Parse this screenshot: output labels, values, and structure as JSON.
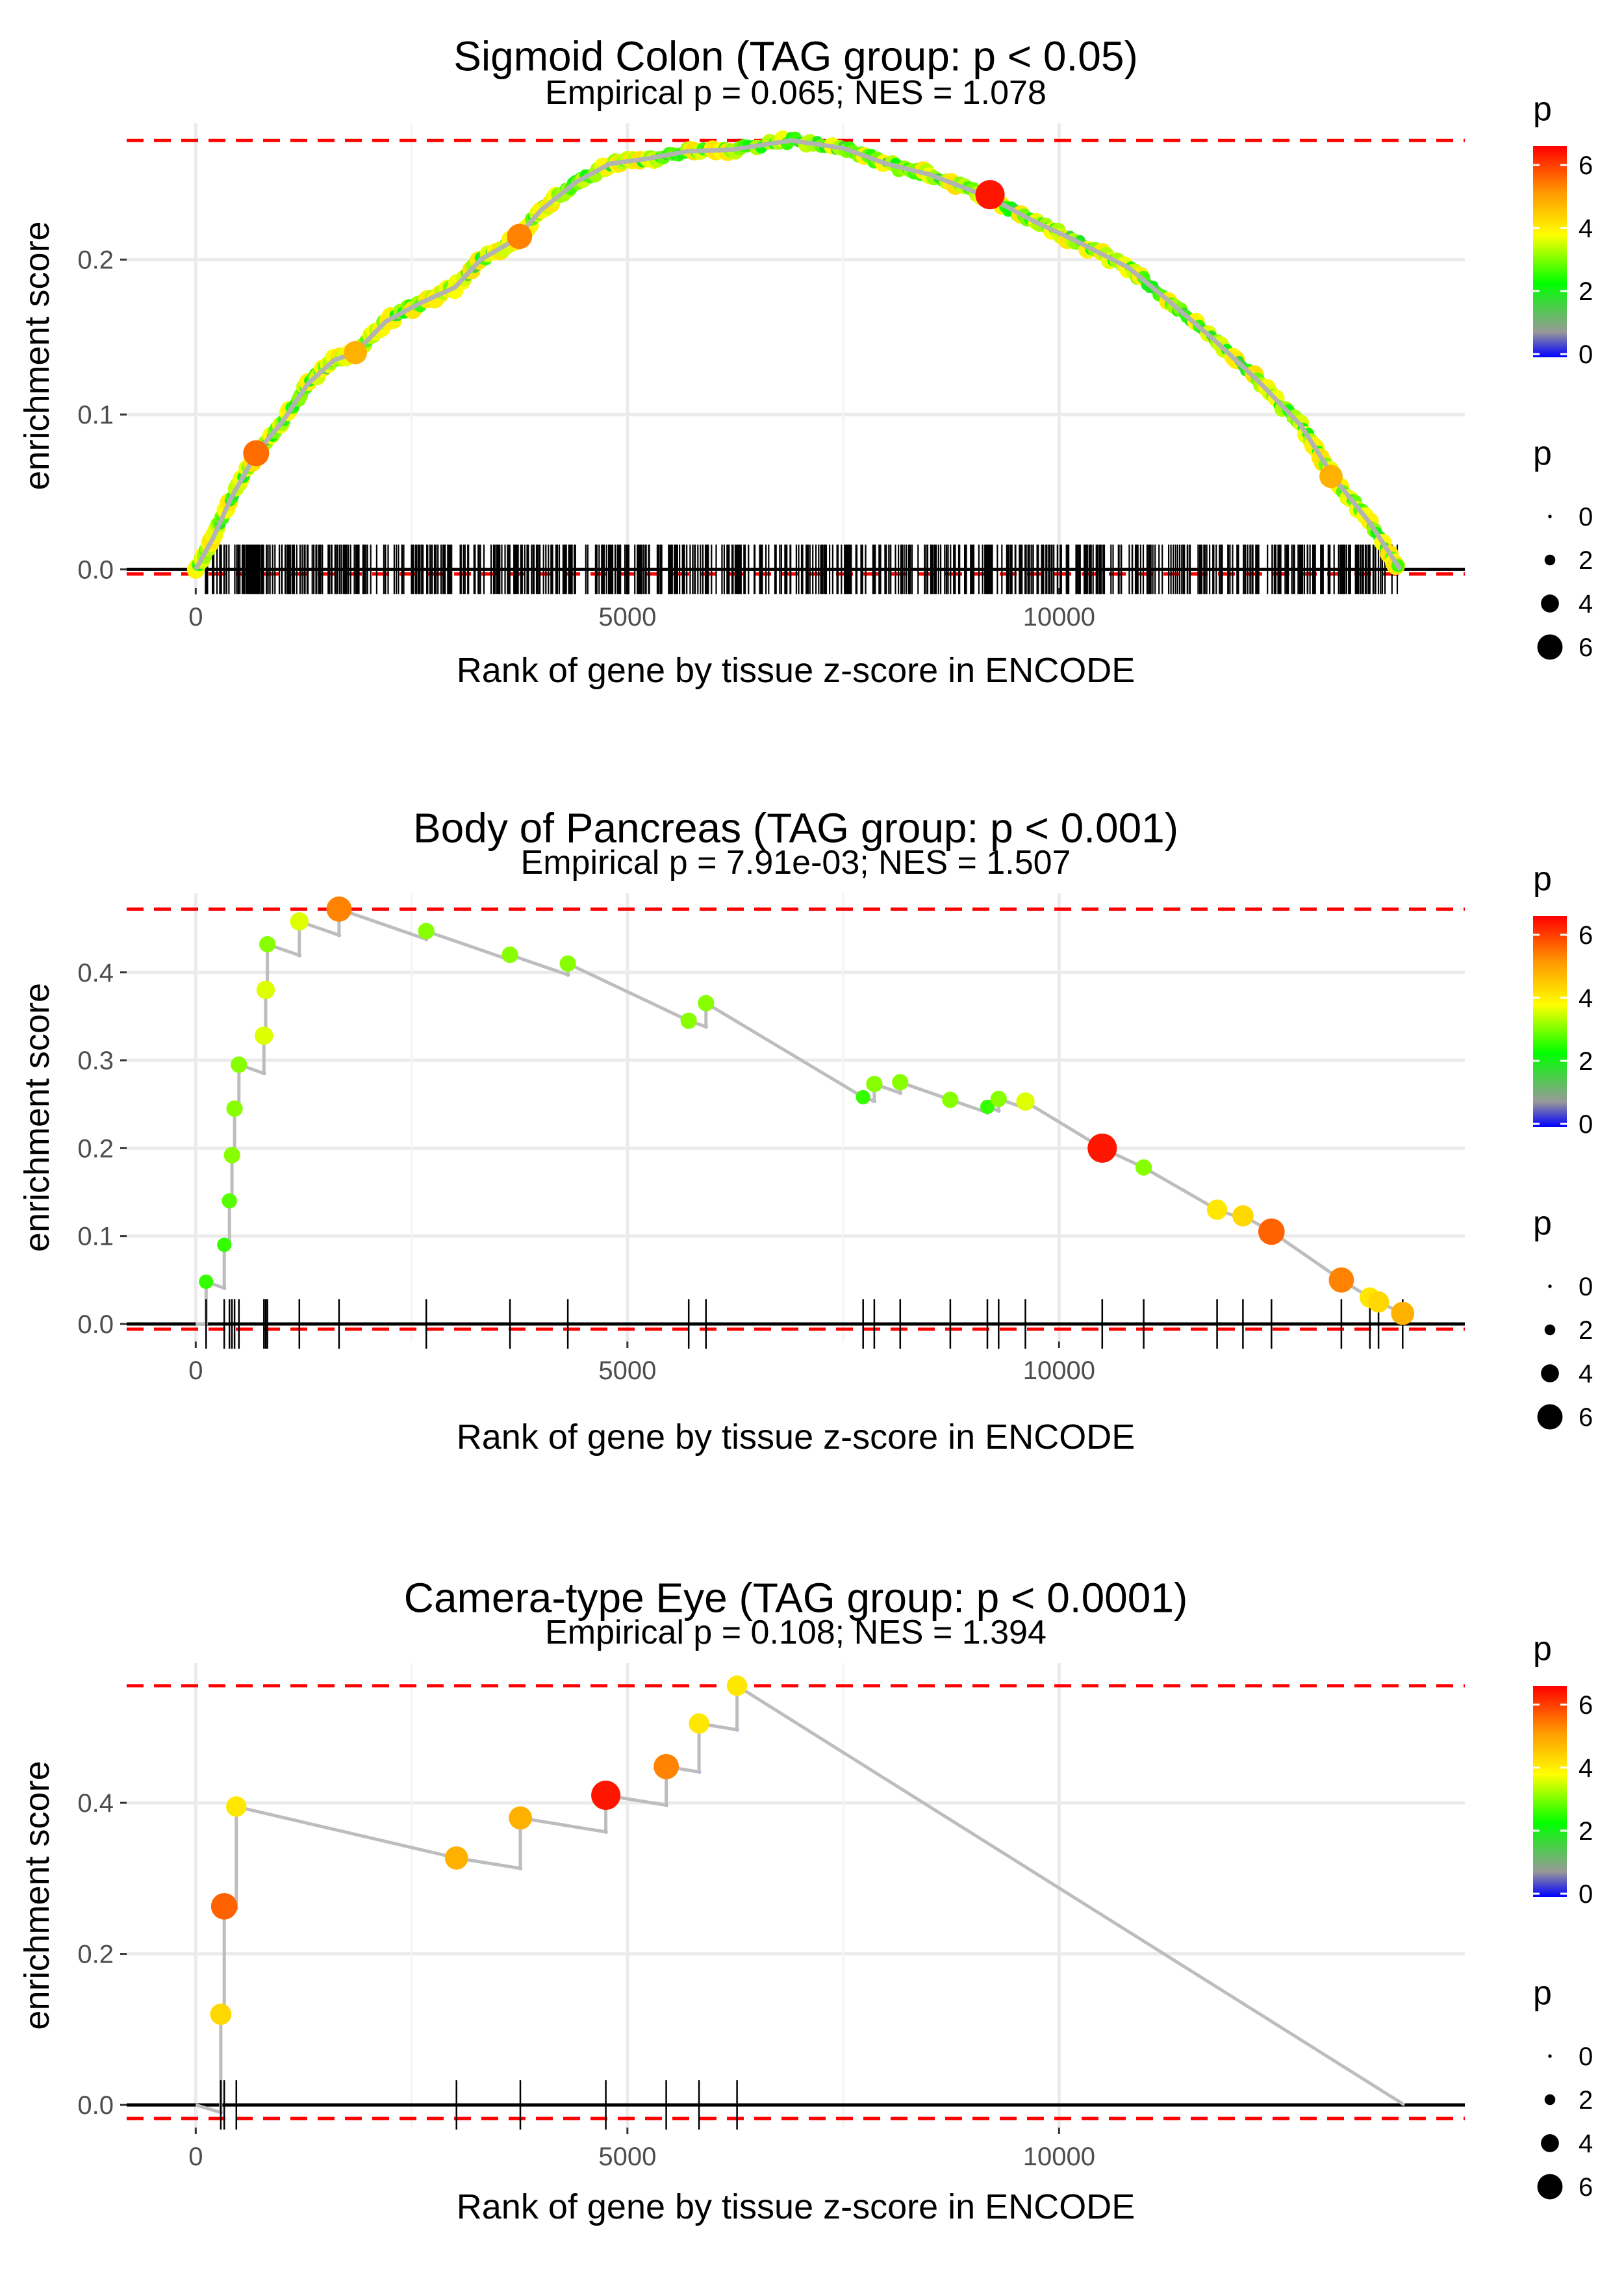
{
  "colorbar": {
    "title": "p",
    "ticks": [
      "6",
      "4",
      "2",
      "0"
    ],
    "colors": [
      "#0000ff",
      "#999999",
      "#00ff00",
      "#ffff00",
      "#ff9900",
      "#ff0000"
    ]
  },
  "sizelegend": {
    "title": "p",
    "labels": [
      "0",
      "2",
      "4",
      "6"
    ]
  },
  "chart_data": [
    {
      "type": "scatter",
      "title": "Sigmoid Colon (TAG group: p < 0.05)",
      "subtitle": "Empirical p = 0.065; NES = 1.078",
      "xlabel": "Rank of gene by tissue z-score in ENCODE",
      "ylabel": "enrichment score",
      "xlim": [
        -800,
        14700
      ],
      "ylim": [
        -0.012,
        0.288
      ],
      "xticks": [
        0,
        5000,
        10000
      ],
      "xtick_labels": [
        "0",
        "5000",
        "10000"
      ],
      "yticks": [
        0,
        0.1,
        0.2
      ],
      "ytick_labels": [
        "0.0",
        "0.1",
        "0.2"
      ],
      "max_es": 0.277,
      "min_es": -0.003,
      "dense": true,
      "curve": [
        [
          0,
          0
        ],
        [
          200,
          0.02
        ],
        [
          400,
          0.045
        ],
        [
          700,
          0.075
        ],
        [
          1000,
          0.095
        ],
        [
          1300,
          0.12
        ],
        [
          1600,
          0.135
        ],
        [
          1850,
          0.14
        ],
        [
          2200,
          0.16
        ],
        [
          2600,
          0.172
        ],
        [
          3000,
          0.182
        ],
        [
          3300,
          0.2
        ],
        [
          3700,
          0.213
        ],
        [
          4000,
          0.232
        ],
        [
          4400,
          0.25
        ],
        [
          4800,
          0.262
        ],
        [
          5200,
          0.265
        ],
        [
          5700,
          0.27
        ],
        [
          6200,
          0.271
        ],
        [
          6900,
          0.277
        ],
        [
          7500,
          0.272
        ],
        [
          8000,
          0.262
        ],
        [
          8500,
          0.255
        ],
        [
          9200,
          0.24
        ],
        [
          9700,
          0.225
        ],
        [
          10200,
          0.212
        ],
        [
          10800,
          0.195
        ],
        [
          11300,
          0.172
        ],
        [
          11800,
          0.148
        ],
        [
          12300,
          0.122
        ],
        [
          12800,
          0.093
        ],
        [
          13200,
          0.058
        ],
        [
          13600,
          0.03
        ],
        [
          13950,
          0.0
        ]
      ],
      "points": [
        [
          700,
          0.075,
          5.5
        ],
        [
          1850,
          0.14,
          4.8
        ],
        [
          3750,
          0.215,
          5.3
        ],
        [
          9200,
          0.242,
          6.3
        ],
        [
          13150,
          0.06,
          4.8
        ]
      ],
      "hits_count": 700,
      "hit_range": [
        100,
        13950
      ]
    },
    {
      "type": "scatter",
      "title": "Body of Pancreas (TAG group: p < 0.001)",
      "subtitle": "Empirical p = 7.91e-03; NES = 1.507",
      "xlabel": "Rank of gene by tissue z-score in ENCODE",
      "ylabel": "enrichment score",
      "xlim": [
        -800,
        14700
      ],
      "ylim": [
        -0.02,
        0.49
      ],
      "xticks": [
        0,
        5000,
        10000
      ],
      "xtick_labels": [
        "0",
        "5000",
        "10000"
      ],
      "yticks": [
        0,
        0.1,
        0.2,
        0.3,
        0.4
      ],
      "ytick_labels": [
        "0.0",
        "0.1",
        "0.2",
        "0.3",
        "0.4"
      ],
      "max_es": 0.472,
      "min_es": -0.006,
      "dense": false,
      "hits": [
        [
          120,
          0.048,
          2.6
        ],
        [
          330,
          0.09,
          2.6
        ],
        [
          390,
          0.14,
          2.8
        ],
        [
          420,
          0.192,
          3.1
        ],
        [
          450,
          0.245,
          3.1
        ],
        [
          500,
          0.295,
          3.1
        ],
        [
          790,
          0.328,
          3.6
        ],
        [
          810,
          0.38,
          3.6
        ],
        [
          830,
          0.432,
          3.1
        ],
        [
          1200,
          0.458,
          3.6
        ],
        [
          1660,
          0.472,
          5.3
        ],
        [
          2670,
          0.447,
          3.1
        ],
        [
          3640,
          0.42,
          3.1
        ],
        [
          4310,
          0.41,
          3.1
        ],
        [
          5710,
          0.345,
          3.1
        ],
        [
          5910,
          0.365,
          3.1
        ],
        [
          7730,
          0.258,
          2.6
        ],
        [
          7860,
          0.273,
          3.1
        ],
        [
          8160,
          0.275,
          3.1
        ],
        [
          8740,
          0.255,
          3.1
        ],
        [
          9170,
          0.247,
          2.6
        ],
        [
          9300,
          0.256,
          3.1
        ],
        [
          9610,
          0.253,
          3.6
        ],
        [
          10500,
          0.2,
          6.3
        ],
        [
          10980,
          0.178,
          3.1
        ],
        [
          11830,
          0.13,
          4.1
        ],
        [
          12130,
          0.123,
          4.3
        ],
        [
          12460,
          0.105,
          5.6
        ],
        [
          13270,
          0.05,
          5.3
        ],
        [
          13600,
          0.03,
          4.1
        ],
        [
          13700,
          0.025,
          4.3
        ],
        [
          13980,
          0.012,
          4.8
        ]
      ]
    },
    {
      "type": "scatter",
      "title": "Camera-type Eye (TAG group: p < 0.0001)",
      "subtitle": "Empirical p = 0.108; NES = 1.394",
      "xlabel": "Rank of gene by tissue z-score in ENCODE",
      "ylabel": "enrichment score",
      "xlim": [
        -800,
        14700
      ],
      "ylim": [
        -0.03,
        0.585
      ],
      "xticks": [
        0,
        5000,
        10000
      ],
      "xtick_labels": [
        "0",
        "5000",
        "10000"
      ],
      "yticks": [
        0,
        0.2,
        0.4
      ],
      "ytick_labels": [
        "0.0",
        "0.2",
        "0.4"
      ],
      "max_es": 0.555,
      "min_es": -0.018,
      "dense": false,
      "hits": [
        [
          290,
          0.12,
          4.3
        ],
        [
          330,
          0.263,
          5.6
        ],
        [
          470,
          0.395,
          4.1
        ],
        [
          3020,
          0.327,
          4.8
        ],
        [
          3760,
          0.38,
          4.8
        ],
        [
          4750,
          0.41,
          6.3
        ],
        [
          5450,
          0.448,
          5.3
        ],
        [
          5830,
          0.505,
          4.1
        ],
        [
          6270,
          0.555,
          4.1
        ]
      ],
      "end_x": 14000
    }
  ]
}
